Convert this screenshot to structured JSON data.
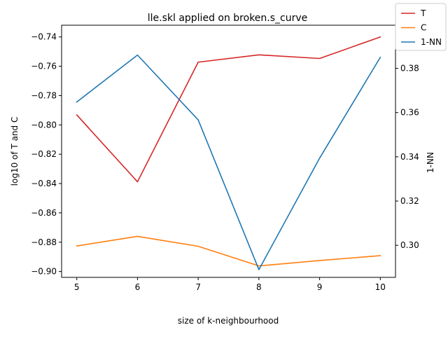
{
  "chart_data": {
    "type": "line",
    "title": "lle.skl applied on broken.s_curve",
    "xlabel": "size of k-neighbourhood",
    "ylabel_left": "log10 of T and C",
    "ylabel_right": "1-NN",
    "x": [
      5,
      6,
      7,
      8,
      9,
      10
    ],
    "xlim": [
      4.75,
      10.25
    ],
    "ylim_left": [
      -0.904,
      -0.732
    ],
    "ylim_right": [
      0.2855,
      0.3995
    ],
    "x_ticks": [
      5,
      6,
      7,
      8,
      9,
      10
    ],
    "y_ticks_left": [
      -0.9,
      -0.88,
      -0.86,
      -0.84,
      -0.82,
      -0.8,
      -0.78,
      -0.76,
      -0.74
    ],
    "y_tick_labels_left": [
      "−0.90",
      "−0.88",
      "−0.86",
      "−0.84",
      "−0.82",
      "−0.80",
      "−0.78",
      "−0.76",
      "−0.74"
    ],
    "y_ticks_right": [
      0.3,
      0.32,
      0.34,
      0.36,
      0.38
    ],
    "y_tick_labels_right": [
      "0.30",
      "0.32",
      "0.34",
      "0.36",
      "0.38"
    ],
    "grid": false,
    "legend_position": "top-right",
    "series": [
      {
        "name": "T",
        "axis": "left",
        "color": "#d62728",
        "values": [
          -0.7932,
          -0.8388,
          -0.7572,
          -0.7522,
          -0.7547,
          -0.74
        ]
      },
      {
        "name": "C",
        "axis": "left",
        "color": "#ff7f0e",
        "values": [
          -0.8826,
          -0.876,
          -0.8828,
          -0.8962,
          -0.8925,
          -0.8892
        ]
      },
      {
        "name": "1-NN",
        "axis": "right",
        "color": "#1f77b4",
        "values": [
          0.3648,
          0.386,
          0.3567,
          0.289,
          0.3394,
          0.385
        ]
      }
    ]
  }
}
